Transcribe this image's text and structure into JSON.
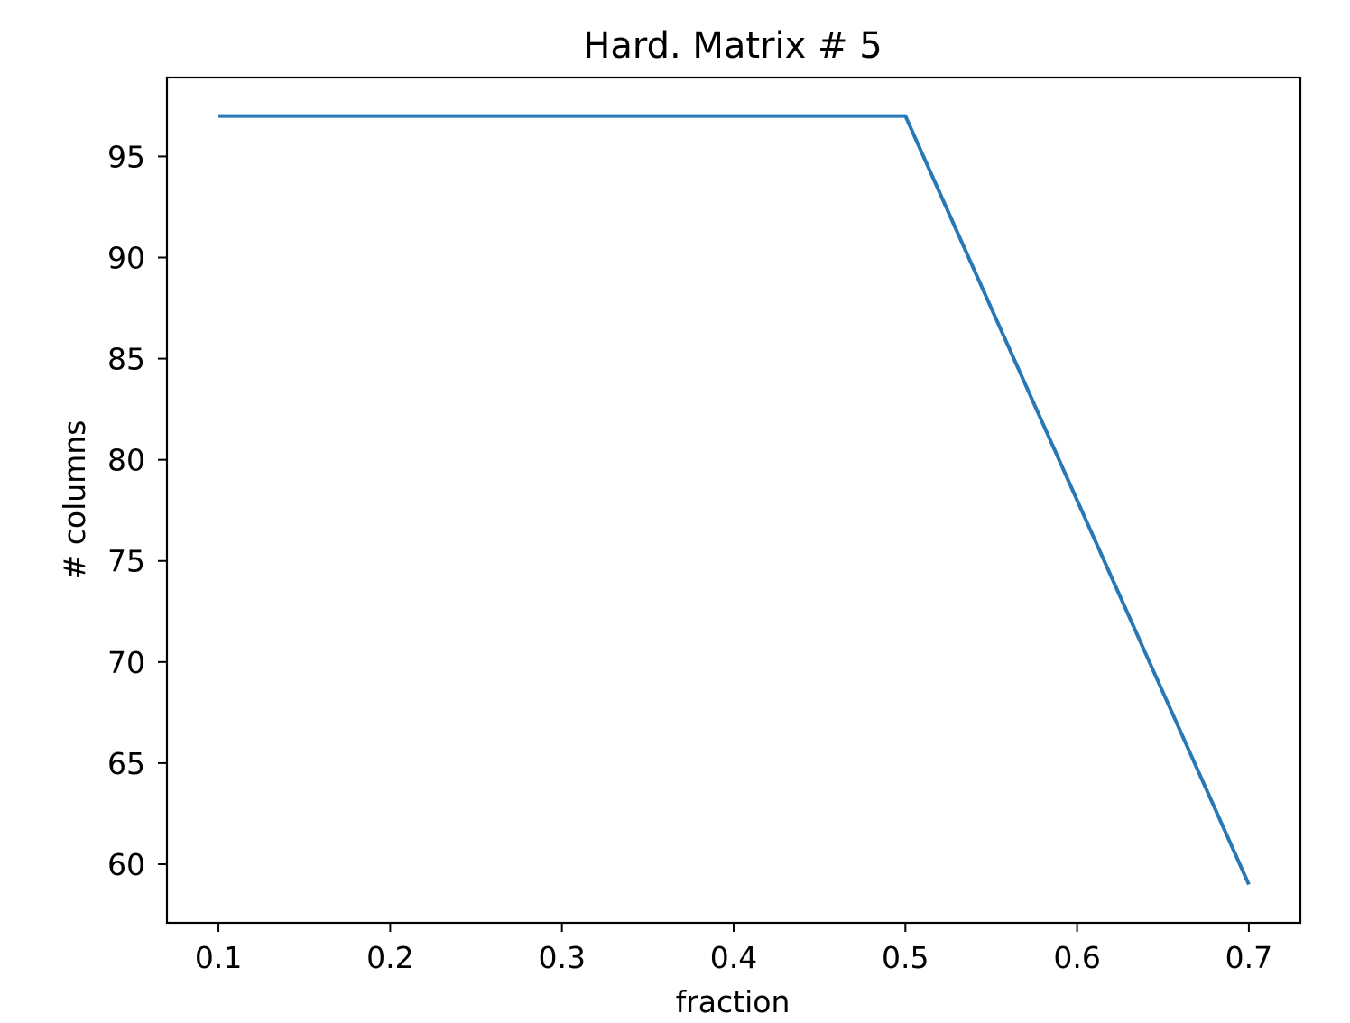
{
  "chart_data": {
    "type": "line",
    "title": "Hard. Matrix # 5",
    "xlabel": "fraction",
    "ylabel": "# columns",
    "xlim": [
      0.07,
      0.73
    ],
    "ylim": [
      57.1,
      98.9
    ],
    "xticks": [
      0.1,
      0.2,
      0.3,
      0.4,
      0.5,
      0.6,
      0.7
    ],
    "xtick_labels": [
      "0.1",
      "0.2",
      "0.3",
      "0.4",
      "0.5",
      "0.6",
      "0.7"
    ],
    "yticks": [
      60,
      65,
      70,
      75,
      80,
      85,
      90,
      95
    ],
    "ytick_labels": [
      "60",
      "65",
      "70",
      "75",
      "80",
      "85",
      "90",
      "95"
    ],
    "grid": false,
    "series": [
      {
        "x": [
          0.1,
          0.2,
          0.3,
          0.4,
          0.5,
          0.6,
          0.7
        ],
        "y": [
          97,
          97,
          97,
          97,
          97,
          78,
          59
        ],
        "color": "#2878b5"
      }
    ]
  }
}
